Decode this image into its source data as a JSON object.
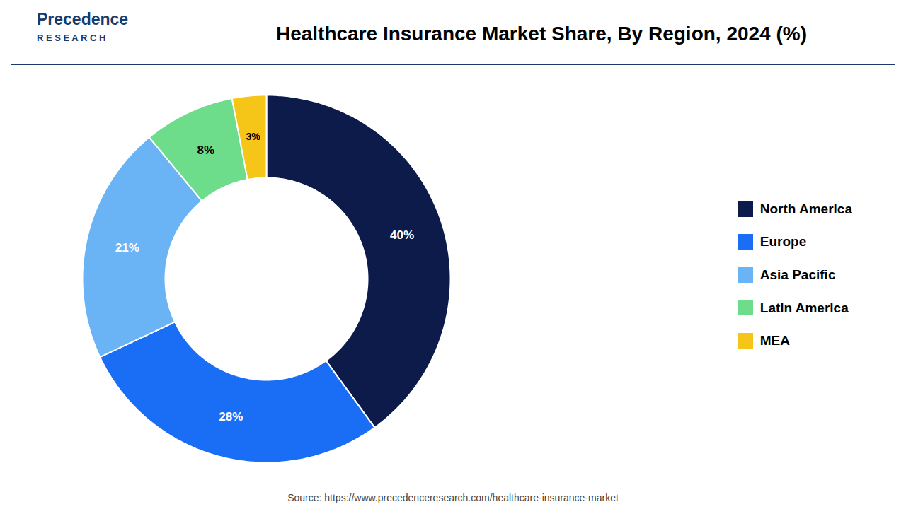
{
  "chart_data": {
    "type": "donut",
    "title": "Healthcare Insurance Market Share, By Region, 2024 (%)",
    "categories": [
      "North America",
      "Europe",
      "Asia Pacific",
      "Latin America",
      "MEA"
    ],
    "values": [
      40,
      28,
      21,
      8,
      3
    ],
    "value_labels": [
      "40%",
      "28%",
      "21%",
      "8%",
      "3%"
    ],
    "colors": [
      "#0d1b4b",
      "#1a6ef5",
      "#6ab4f5",
      "#6ddc8b",
      "#f5c518"
    ],
    "data_labels": true,
    "legend": "right",
    "annotations": [
      "Precedence",
      "R E S E A R C H",
      "Source: https://www.precedenceresearch.com/healthcare-insurance-market"
    ]
  }
}
